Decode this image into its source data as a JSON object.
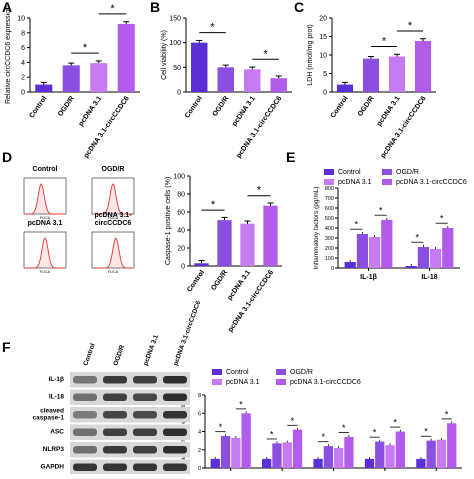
{
  "colors": {
    "control": "#5B2FD6",
    "ogd": "#8A4FE0",
    "pcdna": "#C77BF2",
    "circ": "#B25CEB",
    "flow_line": "#E3342F"
  },
  "panels": {
    "a": "A",
    "b": "B",
    "c": "C",
    "d": "D",
    "e": "E",
    "f": "F"
  },
  "sig": "*",
  "chart_data": [
    {
      "panel": "A",
      "type": "bar",
      "ylabel": "Relative circCCDC6 expression",
      "categories": [
        "Control",
        "OGD/R",
        "pcDNA 3.1",
        "pcDNA 3.1-circCCDC6"
      ],
      "values": [
        1.0,
        3.6,
        3.9,
        9.2
      ],
      "ylim": [
        0,
        10
      ],
      "yticks": [
        "0",
        "2",
        "4",
        "6",
        "8",
        "10"
      ]
    },
    {
      "panel": "B",
      "type": "bar",
      "ylabel": "Cell viability (%)",
      "categories": [
        "Control",
        "OGD/R",
        "pcDNA 3.1",
        "pcDNA 3.1-circCCDC6"
      ],
      "values": [
        100,
        50,
        46,
        28
      ],
      "ylim": [
        0,
        150
      ],
      "yticks": [
        "0",
        "50",
        "100",
        "150"
      ]
    },
    {
      "panel": "C",
      "type": "bar",
      "ylabel": "LDH (nmol/mg prot)",
      "categories": [
        "Control",
        "OGD/R",
        "pcDNA 3.1",
        "pcDNA 3.1-circCCDC6"
      ],
      "values": [
        2.0,
        9.0,
        9.6,
        13.8
      ],
      "ylim": [
        0,
        20
      ],
      "yticks": [
        "0",
        "5",
        "10",
        "15",
        "20"
      ]
    },
    {
      "panel": "D",
      "type": "bar",
      "ylabel": "Caspase-1 positive cells (%)",
      "categories": [
        "Control",
        "OGD/R",
        "pcDNA 3.1",
        "pcDNA 3.1-circCCDC6"
      ],
      "values": [
        3,
        51,
        47,
        67
      ],
      "ylim": [
        0,
        100
      ],
      "yticks": [
        "0",
        "20",
        "40",
        "60",
        "80",
        "100"
      ]
    },
    {
      "panel": "E",
      "type": "bar",
      "ylabel": "Inflammatory factors (pg/mL)",
      "categories": [
        "IL-1β",
        "IL-18"
      ],
      "series": [
        {
          "name": "Control",
          "values": [
            60,
            20
          ]
        },
        {
          "name": "OGD/R",
          "values": [
            340,
            210
          ]
        },
        {
          "name": "pcDNA 3.1",
          "values": [
            310,
            190
          ]
        },
        {
          "name": "pcDNA 3.1-circCCDC6",
          "values": [
            480,
            400
          ]
        }
      ],
      "ylim": [
        0,
        800
      ],
      "yticks": [
        "0",
        "100",
        "200",
        "300",
        "400",
        "500",
        "600",
        "700",
        "800"
      ],
      "legend": "top"
    },
    {
      "panel": "F",
      "type": "bar",
      "ylabel": "Relative protein expression",
      "categories": [
        "IL-1β",
        "IL-18",
        "cleaved caspase-1",
        "ASC",
        "NLRP3"
      ],
      "series": [
        {
          "name": "Control",
          "values": [
            1.0,
            1.0,
            1.0,
            1.0,
            1.0
          ]
        },
        {
          "name": "OGD/R",
          "values": [
            3.5,
            2.7,
            2.4,
            2.9,
            3.0
          ]
        },
        {
          "name": "pcDNA 3.1",
          "values": [
            3.3,
            2.8,
            2.2,
            2.5,
            3.1
          ]
        },
        {
          "name": "pcDNA 3.1-circCCDC6",
          "values": [
            6.0,
            4.2,
            3.4,
            4.0,
            4.9
          ]
        }
      ],
      "ylim": [
        0,
        8
      ],
      "yticks": [
        "0",
        "2",
        "4",
        "6",
        "8"
      ],
      "legend": "top"
    }
  ],
  "flow": {
    "titles": [
      "Control",
      "OGD/R",
      "pcDNA 3.1",
      "pcDNA 3.1-\ncircCCDC6"
    ],
    "xlabel": "FLICA"
  },
  "blot": {
    "rows": [
      "IL-1β",
      "IL-18",
      "cleaved\ncaspase-1",
      "ASC",
      "NLRP3",
      "GAPDH"
    ],
    "cols": [
      "Control",
      "OGD/R",
      "pcDNA 3.1",
      "pcDNA 3.1-circCCDC6"
    ]
  }
}
